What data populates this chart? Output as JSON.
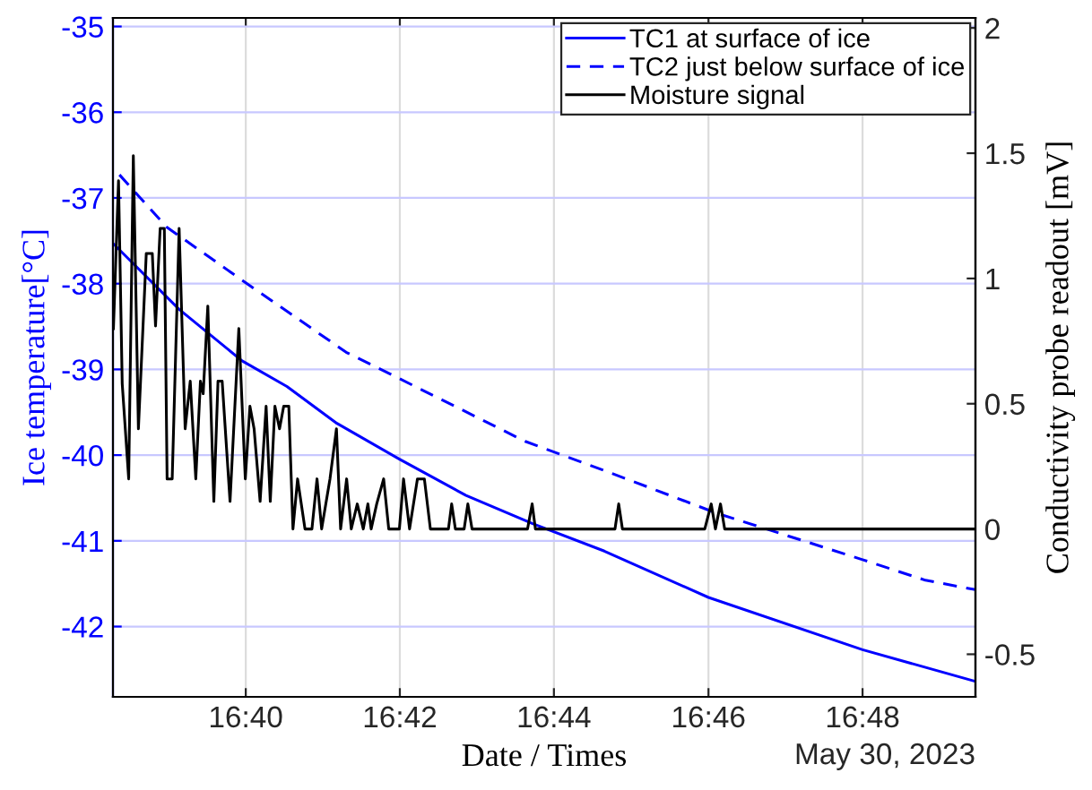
{
  "chart_data": {
    "type": "line",
    "xlabel": "Date / Times",
    "ylabel": "Ice temperature[°C]",
    "y2label": "Conductivity probe readout [mV]",
    "annotations": [
      "May 30, 2023"
    ],
    "xlim": [
      16.638,
      16.8244
    ],
    "xticks": [
      {
        "value": 16.6667,
        "label": "16:40"
      },
      {
        "value": 16.7,
        "label": "16:42"
      },
      {
        "value": 16.7333,
        "label": "16:44"
      },
      {
        "value": 16.7667,
        "label": "16:46"
      },
      {
        "value": 16.8,
        "label": "16:48"
      }
    ],
    "ylim": [
      -42.82,
      -34.9
    ],
    "yticks": [
      -42,
      -41,
      -40,
      -39,
      -38,
      -37,
      -36,
      -35
    ],
    "y2lim": [
      -0.67,
      2.04
    ],
    "y2ticks": [
      -0.5,
      0,
      0.5,
      1,
      1.5,
      2
    ],
    "grid": true,
    "legend": "top right",
    "marker": "none",
    "series": [
      {
        "name": "TC1 at surface of ice",
        "color": "#0000ff",
        "line_style": "solid",
        "x": [
          16.638,
          16.6523,
          16.6659,
          16.6756,
          16.6864,
          16.7,
          16.7143,
          16.7287,
          16.7442,
          16.7667,
          16.8,
          16.8244
        ],
        "values": [
          -37.53,
          -38.3,
          -38.9,
          -39.2,
          -39.63,
          -40.05,
          -40.47,
          -40.8,
          -41.12,
          -41.66,
          -42.27,
          -42.64
        ]
      },
      {
        "name": "TC2 just below surface of ice",
        "color": "#0000ff",
        "line_style": "dashed",
        "x": [
          16.6394,
          16.6496,
          16.6659,
          16.6884,
          16.7,
          16.7271,
          16.7442,
          16.7686,
          16.7791,
          16.8,
          16.8136,
          16.8244
        ],
        "values": [
          -36.73,
          -37.34,
          -37.96,
          -38.8,
          -39.11,
          -39.84,
          -40.18,
          -40.68,
          -40.86,
          -41.22,
          -41.46,
          -41.57
        ]
      },
      {
        "name": "Moisture signal",
        "color": "#000000",
        "line_style": "solid",
        "axis": "y2",
        "x": [
          16.6381,
          16.6392,
          16.64,
          16.6414,
          16.6424,
          16.6435,
          16.6452,
          16.6465,
          16.6472,
          16.6482,
          16.6491,
          16.6497,
          16.6508,
          16.6523,
          16.6536,
          16.6547,
          16.6559,
          16.6569,
          16.6575,
          16.6585,
          16.6598,
          16.6607,
          16.6616,
          16.6633,
          16.6652,
          16.6666,
          16.6676,
          16.6685,
          16.6698,
          16.6711,
          16.672,
          16.673,
          16.674,
          16.6749,
          16.676,
          16.6769,
          16.6779,
          16.6795,
          16.681,
          16.6821,
          16.6831,
          16.6849,
          16.6863,
          16.6872,
          16.6885,
          16.6895,
          16.6908,
          16.6921,
          16.6931,
          16.6938,
          16.695,
          16.6965,
          16.6976,
          16.6999,
          16.7008,
          16.7021,
          16.7038,
          16.7053,
          16.7066,
          16.7105,
          16.7112,
          16.712,
          16.7139,
          16.7147,
          16.7156,
          16.7276,
          16.7286,
          16.7293,
          16.7465,
          16.7473,
          16.7481,
          16.7659,
          16.7673,
          16.7682,
          16.7693,
          16.7702,
          16.8244
        ],
        "values": [
          0.8,
          1.39,
          0.58,
          0.2,
          1.49,
          0.4,
          1.1,
          1.1,
          0.81,
          1.2,
          1.2,
          0.2,
          0.2,
          1.2,
          0.4,
          0.59,
          0.2,
          0.59,
          0.54,
          0.89,
          0.11,
          0.59,
          0.59,
          0.11,
          0.8,
          0.2,
          0.49,
          0.4,
          0.11,
          0.49,
          0.11,
          0.49,
          0.4,
          0.49,
          0.49,
          0,
          0.2,
          0,
          0,
          0.2,
          0,
          0.2,
          0.4,
          0,
          0.2,
          0,
          0.1,
          0,
          0.1,
          0,
          0.1,
          0.2,
          0,
          0,
          0.2,
          0,
          0.2,
          0.2,
          0,
          0,
          0.1,
          0,
          0,
          0.1,
          0,
          0,
          0.1,
          0,
          0,
          0.1,
          0,
          0,
          0.1,
          0,
          0.1,
          0,
          0
        ]
      }
    ]
  }
}
